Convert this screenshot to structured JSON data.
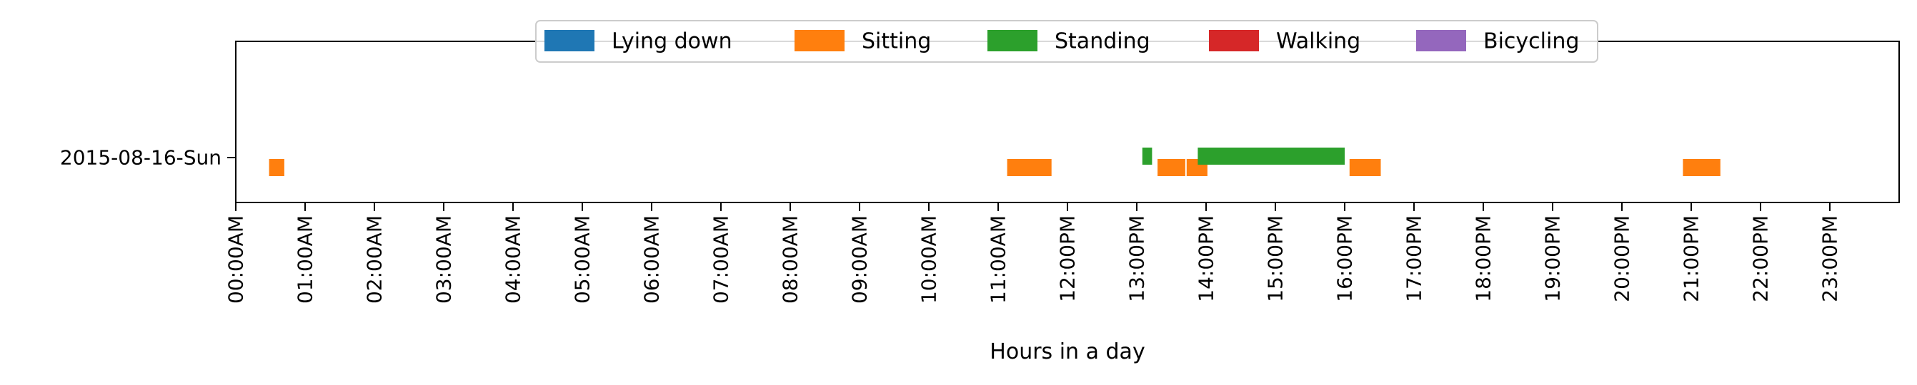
{
  "chart_data": {
    "type": "timeline",
    "title": "",
    "xlabel": "Hours in a day",
    "ylabel": "",
    "xlim_hours": [
      0,
      24
    ],
    "y_categories": [
      "2015-08-16-Sun"
    ],
    "x_tick_labels": [
      "00:00AM",
      "01:00AM",
      "02:00AM",
      "03:00AM",
      "04:00AM",
      "05:00AM",
      "06:00AM",
      "07:00AM",
      "08:00AM",
      "09:00AM",
      "10:00AM",
      "11:00AM",
      "12:00PM",
      "13:00PM",
      "14:00PM",
      "15:00PM",
      "16:00PM",
      "17:00PM",
      "18:00PM",
      "19:00PM",
      "20:00PM",
      "21:00PM",
      "22:00PM",
      "23:00PM"
    ],
    "legend_position": "top-center",
    "grid": false,
    "series": [
      {
        "name": "Lying down",
        "color": "#1f77b4",
        "intervals": []
      },
      {
        "name": "Sitting",
        "color": "#ff7f0e",
        "intervals": [
          [
            0.48,
            0.7
          ],
          [
            11.13,
            11.77
          ],
          [
            13.3,
            13.7
          ],
          [
            13.72,
            14.02
          ],
          [
            16.07,
            16.52
          ],
          [
            20.88,
            21.42
          ]
        ]
      },
      {
        "name": "Standing",
        "color": "#2ca02c",
        "intervals": [
          [
            13.08,
            13.22
          ],
          [
            13.88,
            16.0
          ]
        ]
      },
      {
        "name": "Walking",
        "color": "#d62728",
        "intervals": []
      },
      {
        "name": "Bicycling",
        "color": "#9467bd",
        "intervals": []
      }
    ]
  }
}
